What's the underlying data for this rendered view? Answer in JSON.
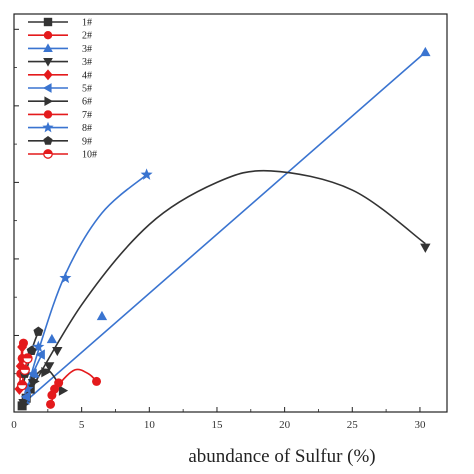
{
  "chart_data": {
    "type": "scatter",
    "title": "",
    "xlabel": "abundance of Sulfur (%)",
    "ylabel": "",
    "xlim": [
      0,
      32
    ],
    "ylim": [
      0,
      5.2
    ],
    "xticks": [
      0,
      5,
      10,
      15,
      20,
      25,
      30
    ],
    "yticks": [
      0,
      1,
      2,
      3,
      4,
      5
    ],
    "show_ytick_labels": false,
    "grid": false,
    "legend_position": "top-left",
    "series": [
      {
        "name": "1#",
        "color": "#333333",
        "marker": "square",
        "fit": "curve",
        "points": [
          [
            0.6,
            0.08
          ],
          [
            0.9,
            0.18
          ],
          [
            1.2,
            0.3
          ]
        ],
        "fit_points": [
          [
            0.5,
            0.05
          ],
          [
            0.9,
            0.2
          ],
          [
            1.4,
            0.35
          ]
        ]
      },
      {
        "name": "2#",
        "color": "#e41a1c",
        "marker": "circle",
        "fit": "curve",
        "points": [
          [
            0.5,
            0.5
          ],
          [
            0.6,
            0.7
          ],
          [
            0.7,
            0.9
          ]
        ],
        "fit_points": [
          [
            0.5,
            0.45
          ],
          [
            0.6,
            0.7
          ],
          [
            0.7,
            0.95
          ]
        ]
      },
      {
        "name": "3#",
        "color": "#3a74d0",
        "marker": "triangle-up",
        "fit": "line",
        "points": [
          [
            0.8,
            0.15
          ],
          [
            1.5,
            0.5
          ],
          [
            2.8,
            0.95
          ],
          [
            6.5,
            1.25
          ],
          [
            30.4,
            4.7
          ]
        ],
        "fit_points": [
          [
            0.6,
            0.1
          ],
          [
            30.4,
            4.7
          ]
        ]
      },
      {
        "name": "3#",
        "color": "#333333",
        "marker": "triangle-down",
        "fit": "curve",
        "points": [
          [
            0.7,
            0.12
          ],
          [
            1.4,
            0.38
          ],
          [
            2.6,
            0.6
          ],
          [
            3.2,
            0.8
          ],
          [
            30.4,
            2.15
          ]
        ],
        "fit_points": [
          [
            0.5,
            0.05
          ],
          [
            5,
            1.4
          ],
          [
            10,
            2.45
          ],
          [
            15,
            3.0
          ],
          [
            19,
            3.15
          ],
          [
            25,
            2.9
          ],
          [
            30.4,
            2.2
          ]
        ]
      },
      {
        "name": "4#",
        "color": "#e41a1c",
        "marker": "diamond",
        "fit": "curve",
        "points": [
          [
            0.4,
            0.3
          ],
          [
            0.5,
            0.6
          ],
          [
            0.6,
            0.85
          ]
        ],
        "fit_points": [
          [
            0.4,
            0.25
          ],
          [
            0.5,
            0.6
          ],
          [
            0.6,
            0.9
          ]
        ]
      },
      {
        "name": "5#",
        "color": "#3a74d0",
        "marker": "triangle-left",
        "fit": "curve",
        "points": [
          [
            0.9,
            0.2
          ],
          [
            1.4,
            0.5
          ],
          [
            2.0,
            0.75
          ]
        ],
        "fit_points": [
          [
            0.7,
            0.1
          ],
          [
            1.4,
            0.5
          ],
          [
            2.2,
            0.8
          ]
        ]
      },
      {
        "name": "6#",
        "color": "#333333",
        "marker": "triangle-right",
        "fit": "curve",
        "points": [
          [
            0.7,
            0.1
          ],
          [
            1.5,
            0.4
          ],
          [
            2.3,
            0.52
          ],
          [
            3.6,
            0.28
          ]
        ],
        "fit_points": [
          [
            0.6,
            0.05
          ],
          [
            1.5,
            0.45
          ],
          [
            2.5,
            0.55
          ],
          [
            3.6,
            0.28
          ]
        ]
      },
      {
        "name": "7#",
        "color": "#e41a1c",
        "marker": "circle",
        "fit": "curve",
        "points": [
          [
            2.7,
            0.1
          ],
          [
            2.8,
            0.22
          ],
          [
            3.0,
            0.3
          ],
          [
            3.3,
            0.38
          ],
          [
            6.1,
            0.4
          ]
        ],
        "fit_points": [
          [
            2.7,
            0.1
          ],
          [
            3.3,
            0.35
          ],
          [
            4.5,
            0.55
          ],
          [
            5.5,
            0.5
          ],
          [
            6.1,
            0.4
          ]
        ]
      },
      {
        "name": "8#",
        "color": "#3a74d0",
        "marker": "star",
        "fit": "curve",
        "points": [
          [
            1.0,
            0.3
          ],
          [
            1.8,
            0.85
          ],
          [
            3.8,
            1.75
          ],
          [
            9.8,
            3.1
          ]
        ],
        "fit_points": [
          [
            0.6,
            0.05
          ],
          [
            1.8,
            0.8
          ],
          [
            3.8,
            1.8
          ],
          [
            6.5,
            2.6
          ],
          [
            9.8,
            3.1
          ]
        ]
      },
      {
        "name": "9#",
        "color": "#333333",
        "marker": "pentagon",
        "fit": "curve",
        "points": [
          [
            0.8,
            0.5
          ],
          [
            1.3,
            0.8
          ],
          [
            1.8,
            1.05
          ]
        ],
        "fit_points": [
          [
            0.6,
            0.3
          ],
          [
            1.3,
            0.8
          ],
          [
            1.8,
            1.05
          ]
        ]
      },
      {
        "name": "10#",
        "color": "#e41a1c",
        "marker": "half-circle",
        "fit": "curve",
        "points": [
          [
            0.6,
            0.35
          ],
          [
            0.8,
            0.55
          ],
          [
            1.0,
            0.7
          ]
        ],
        "fit_points": [
          [
            0.5,
            0.3
          ],
          [
            0.8,
            0.55
          ],
          [
            1.0,
            0.7
          ]
        ]
      }
    ]
  }
}
